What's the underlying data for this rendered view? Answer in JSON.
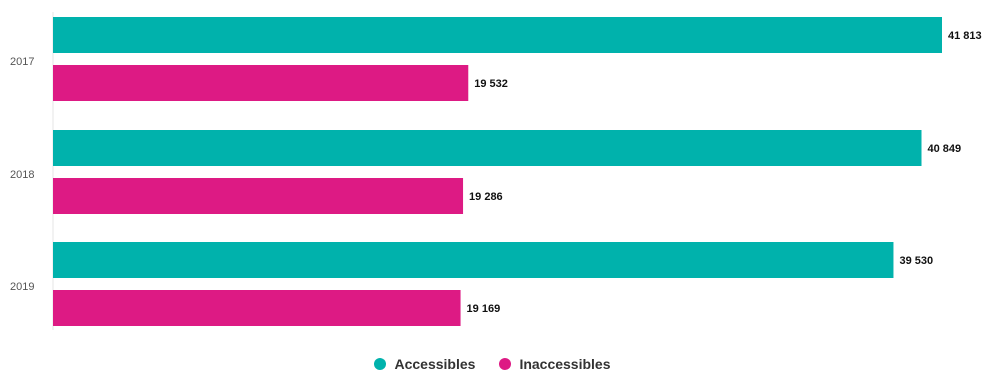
{
  "chart_data": {
    "type": "bar",
    "orientation": "horizontal",
    "categories": [
      "2017",
      "2018",
      "2019"
    ],
    "series": [
      {
        "name": "Accessibles",
        "color": "#00B2AC",
        "values": [
          41813,
          40849,
          39530
        ]
      },
      {
        "name": "Inaccessibles",
        "color": "#DD1A84",
        "values": [
          19532,
          19286,
          19169
        ]
      }
    ],
    "value_labels": [
      [
        "41 813",
        "40 849",
        "39 530"
      ],
      [
        "19 532",
        "19 286",
        "19 169"
      ]
    ],
    "xlim": [
      0,
      42000
    ],
    "grid": false,
    "legend_position": "bottom-center"
  }
}
